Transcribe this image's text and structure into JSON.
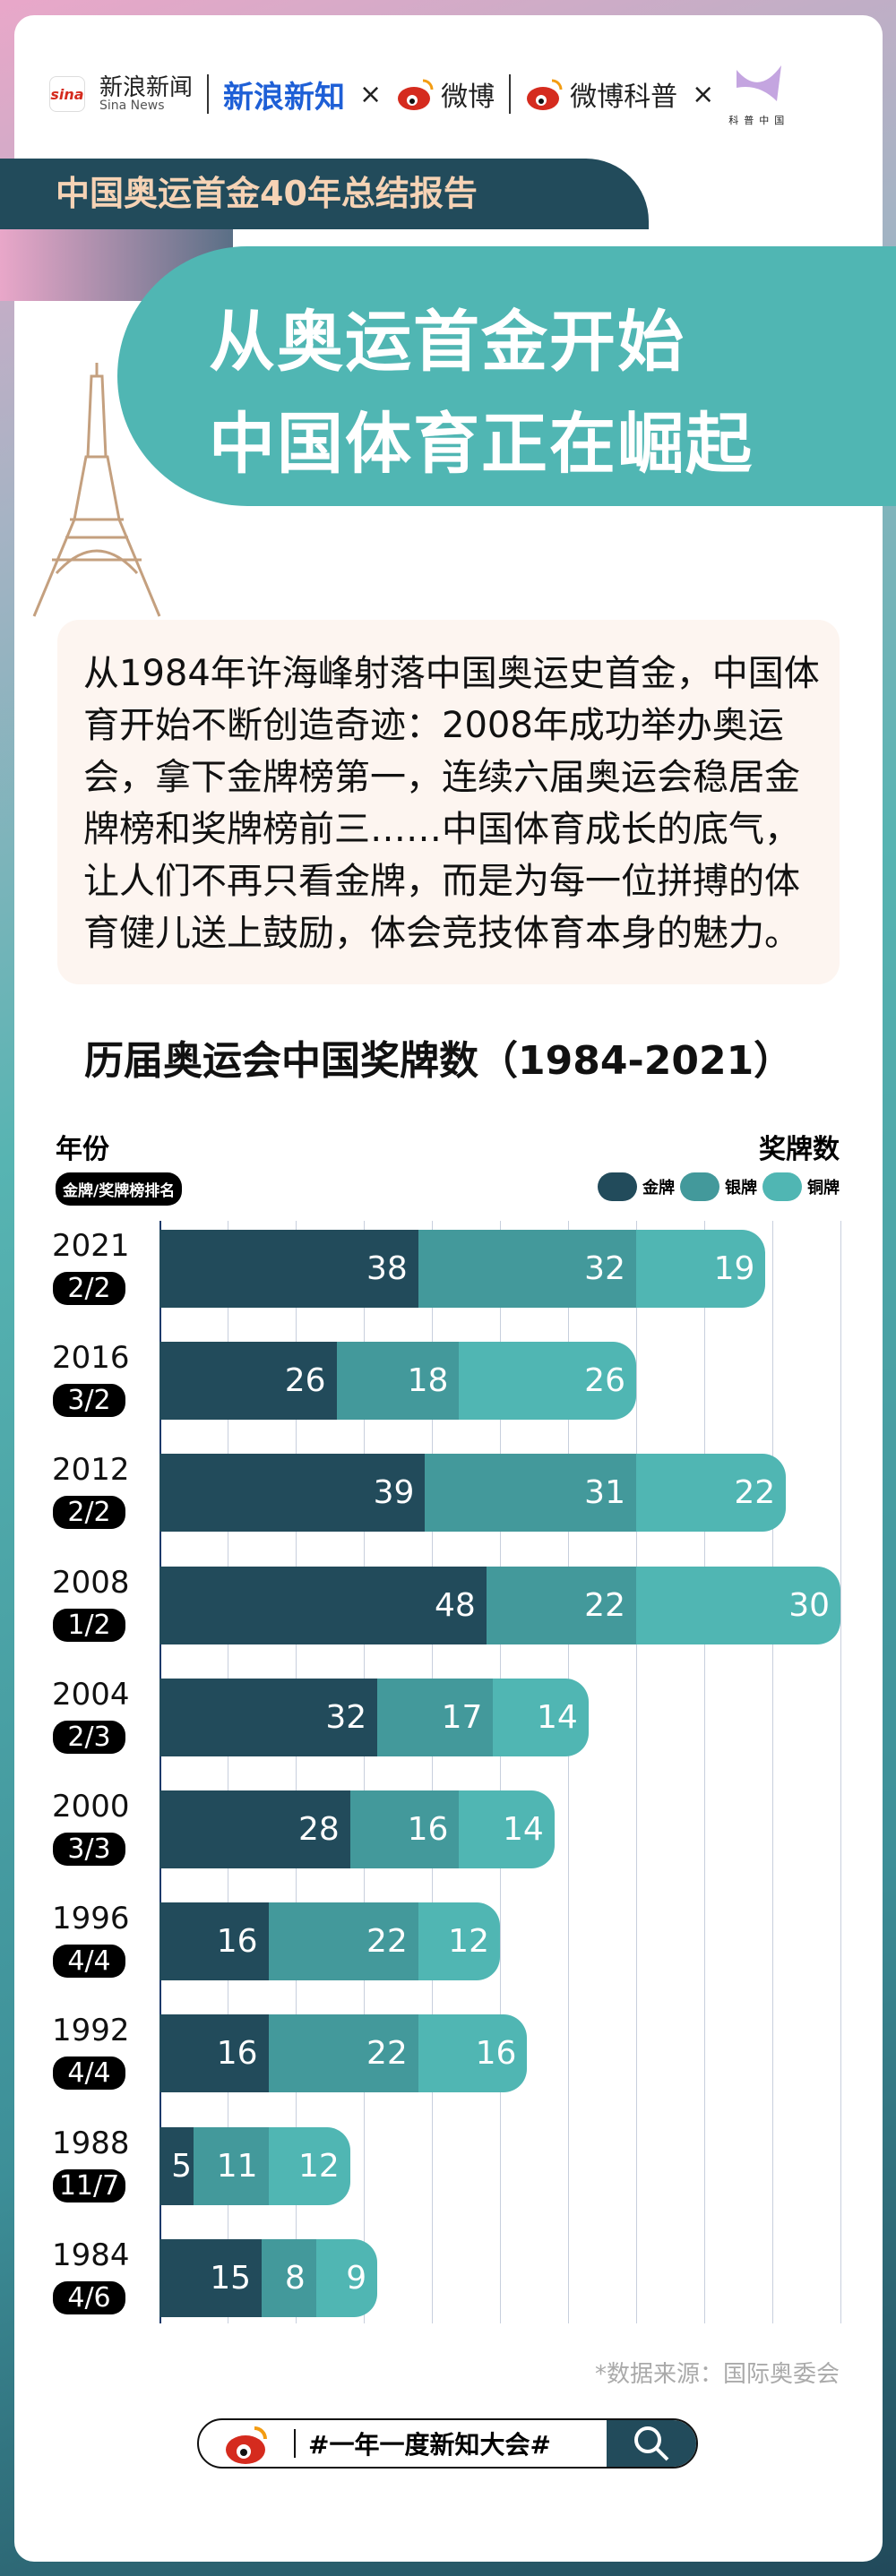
{
  "header": {
    "logos": {
      "sina_news_cn": "新浪新闻",
      "sina_news_en": "Sina News",
      "sina_mark": "sina",
      "xinlang_xinzhi": "新浪新知",
      "weibo": "微博",
      "weibo_kepu": "微博科普",
      "kepu_china": "科普中国",
      "times": "×"
    },
    "banner": "中国奥运首金40年总结报告",
    "title_lines": [
      "从奥运首金开始",
      "中国体育正在崛起"
    ]
  },
  "intro": {
    "lines": [
      "从1984年许海峰射落中国奥运史首金，中国体",
      "育开始不断创造奇迹：2008年成功举办奥运",
      "会，拿下金牌榜第一，连续六届奥运会稳居金",
      "牌榜和奖牌榜前三……中国体育成长的底气，",
      "让人们不再只看金牌，而是为每一位拼搏的体",
      "育健儿送上鼓励，体会竞技体育本身的魅力。"
    ]
  },
  "chart_data": {
    "type": "bar",
    "orientation": "horizontal-stacked",
    "title": "历届奥运会中国奖牌数（1984-2021）",
    "ylabel": "年份",
    "rank_label": "金牌/奖牌榜排名",
    "xlabel": "奖牌数",
    "xlim": [
      0,
      100
    ],
    "grid": true,
    "legend_placement": "top-right",
    "categories": [
      "2021",
      "2016",
      "2012",
      "2008",
      "2004",
      "2000",
      "1996",
      "1992",
      "1988",
      "1984"
    ],
    "ranks": [
      "2/2",
      "3/2",
      "2/2",
      "1/2",
      "2/3",
      "3/3",
      "4/4",
      "4/4",
      "11/7",
      "4/6"
    ],
    "series": [
      {
        "name": "金牌",
        "color": "#224b5b",
        "values": [
          38,
          26,
          39,
          48,
          32,
          28,
          16,
          16,
          5,
          15
        ]
      },
      {
        "name": "银牌",
        "color": "#43999b",
        "values": [
          32,
          18,
          31,
          22,
          17,
          16,
          22,
          22,
          11,
          8
        ]
      },
      {
        "name": "铜牌",
        "color": "#50b6b3",
        "values": [
          19,
          26,
          22,
          30,
          14,
          14,
          12,
          16,
          12,
          9
        ]
      }
    ]
  },
  "footer": {
    "source": "*数据来源：国际奥委会",
    "hashtag": "#一年一度新知大会#"
  }
}
